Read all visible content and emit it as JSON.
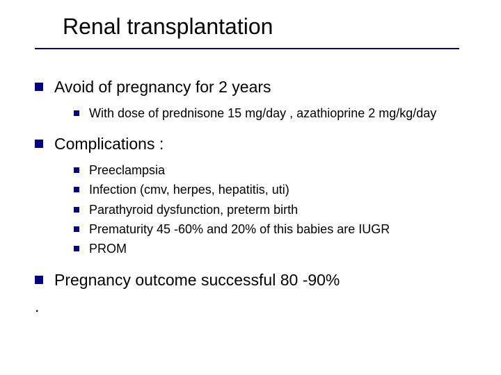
{
  "title": "Renal transplantation",
  "colors": {
    "bullet": "#000080",
    "rule": "#000080",
    "text": "#000000",
    "background": "#ffffff"
  },
  "fonts": {
    "title_size": 32,
    "l1_size": 23,
    "l2_size": 18,
    "family": "Verdana"
  },
  "items": [
    {
      "text": "Avoid of pregnancy for 2 years",
      "sub": [
        "With dose of prednisone 15 mg/day , azathioprine 2 mg/kg/day"
      ]
    },
    {
      "text": "Complications :",
      "sub": [
        "Preeclampsia",
        "Infection (cmv, herpes, hepatitis, uti)",
        "Parathyroid dysfunction, preterm birth",
        "Prematurity 45 -60% and 20% of this babies are IUGR",
        "PROM"
      ]
    },
    {
      "text": "Pregnancy outcome successful 80 -90%",
      "sub": []
    }
  ],
  "trailing": "."
}
